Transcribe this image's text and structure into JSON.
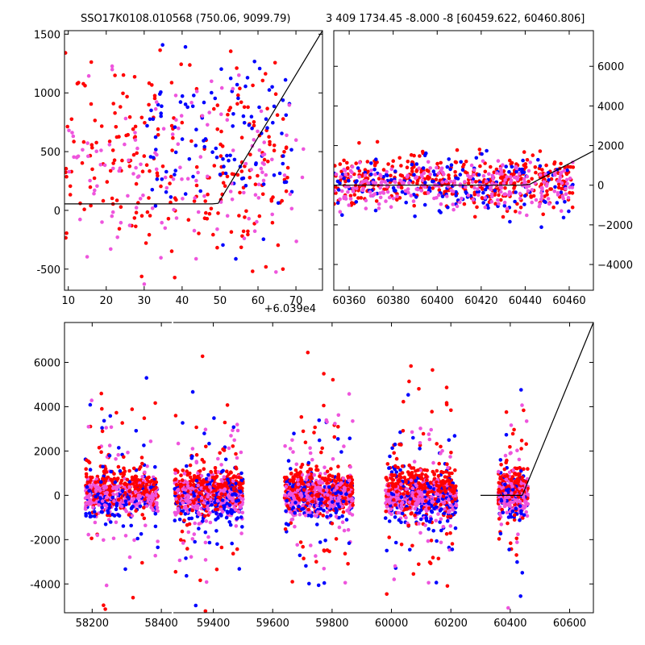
{
  "titles": {
    "left": "SSO17K0108.010568 (750.06, 9099.79)",
    "right": "3 409 1734.45 -8.000 -8 [60459.622, 60460.806]"
  },
  "offset_label": "+6.039e4",
  "colors": {
    "red": "#ff0000",
    "blue": "#0000ff",
    "pink": "#ee55dd",
    "line": "#000000"
  },
  "chart_data": [
    {
      "id": "top-left",
      "type": "scatter",
      "xlim": [
        9,
        77
      ],
      "ylim": [
        -680,
        1530
      ],
      "xticks": [
        10,
        20,
        30,
        40,
        50,
        60,
        70
      ],
      "yticks": [
        -500,
        0,
        500,
        1000,
        1500
      ],
      "x_offset_label": "+6.039e4",
      "y_axis_side": "left",
      "model_line": {
        "x": [
          9,
          48,
          49.5,
          77
        ],
        "y": [
          55,
          55,
          60,
          1530
        ]
      },
      "clusters": [
        {
          "series": "red",
          "x_range": [
            9,
            68
          ],
          "y_center": 450,
          "y_spread": 600,
          "count": 240
        },
        {
          "series": "blue",
          "x_range": [
            30,
            70
          ],
          "y_center": 600,
          "y_spread": 500,
          "count": 110
        },
        {
          "series": "pink",
          "x_range": [
            10,
            72
          ],
          "y_center": 300,
          "y_spread": 550,
          "count": 140
        }
      ]
    },
    {
      "id": "top-right",
      "type": "scatter",
      "xlim": [
        60353,
        60471
      ],
      "ylim": [
        -5300,
        7800
      ],
      "xticks": [
        60360,
        60380,
        60400,
        60420,
        60440,
        60460
      ],
      "yticks": [
        -4000,
        -2000,
        0,
        2000,
        4000,
        6000
      ],
      "y_axis_side": "right",
      "model_line": {
        "x": [
          60353,
          60438,
          60442,
          60471
        ],
        "y": [
          0,
          0,
          40,
          1730
        ]
      },
      "clusters": [
        {
          "series": "red",
          "x_range": [
            60353,
            60462
          ],
          "y_center": 200,
          "y_spread": 900,
          "count": 420
        },
        {
          "series": "blue",
          "x_range": [
            60353,
            60462
          ],
          "y_center": -100,
          "y_spread": 1100,
          "count": 160
        },
        {
          "series": "pink",
          "x_range": [
            60353,
            60462
          ],
          "y_center": -50,
          "y_spread": 800,
          "count": 260
        }
      ]
    },
    {
      "id": "bottom",
      "type": "scatter",
      "x_segments": [
        {
          "xlim": [
            58120,
            58430
          ],
          "xticks": [
            58200,
            58400
          ]
        },
        {
          "xlim": [
            59260,
            60680
          ],
          "xticks": [
            59400,
            59600,
            59800,
            60000,
            60200,
            60400,
            60600
          ]
        }
      ],
      "ylim": [
        -5300,
        7800
      ],
      "yticks": [
        -4000,
        -2000,
        0,
        2000,
        4000,
        6000
      ],
      "y_axis_side": "left",
      "model_line": {
        "x": [
          60300,
          60440,
          60442,
          60680
        ],
        "y": [
          0,
          0,
          40,
          7800
        ]
      },
      "seasons": [
        {
          "x_range": [
            58180,
            58390
          ],
          "count": 700
        },
        {
          "x_range": [
            59270,
            59500
          ],
          "count": 900
        },
        {
          "x_range": [
            59640,
            59870
          ],
          "count": 900
        },
        {
          "x_range": [
            59980,
            60220
          ],
          "count": 900
        },
        {
          "x_range": [
            60360,
            60460
          ],
          "count": 500
        }
      ]
    }
  ]
}
